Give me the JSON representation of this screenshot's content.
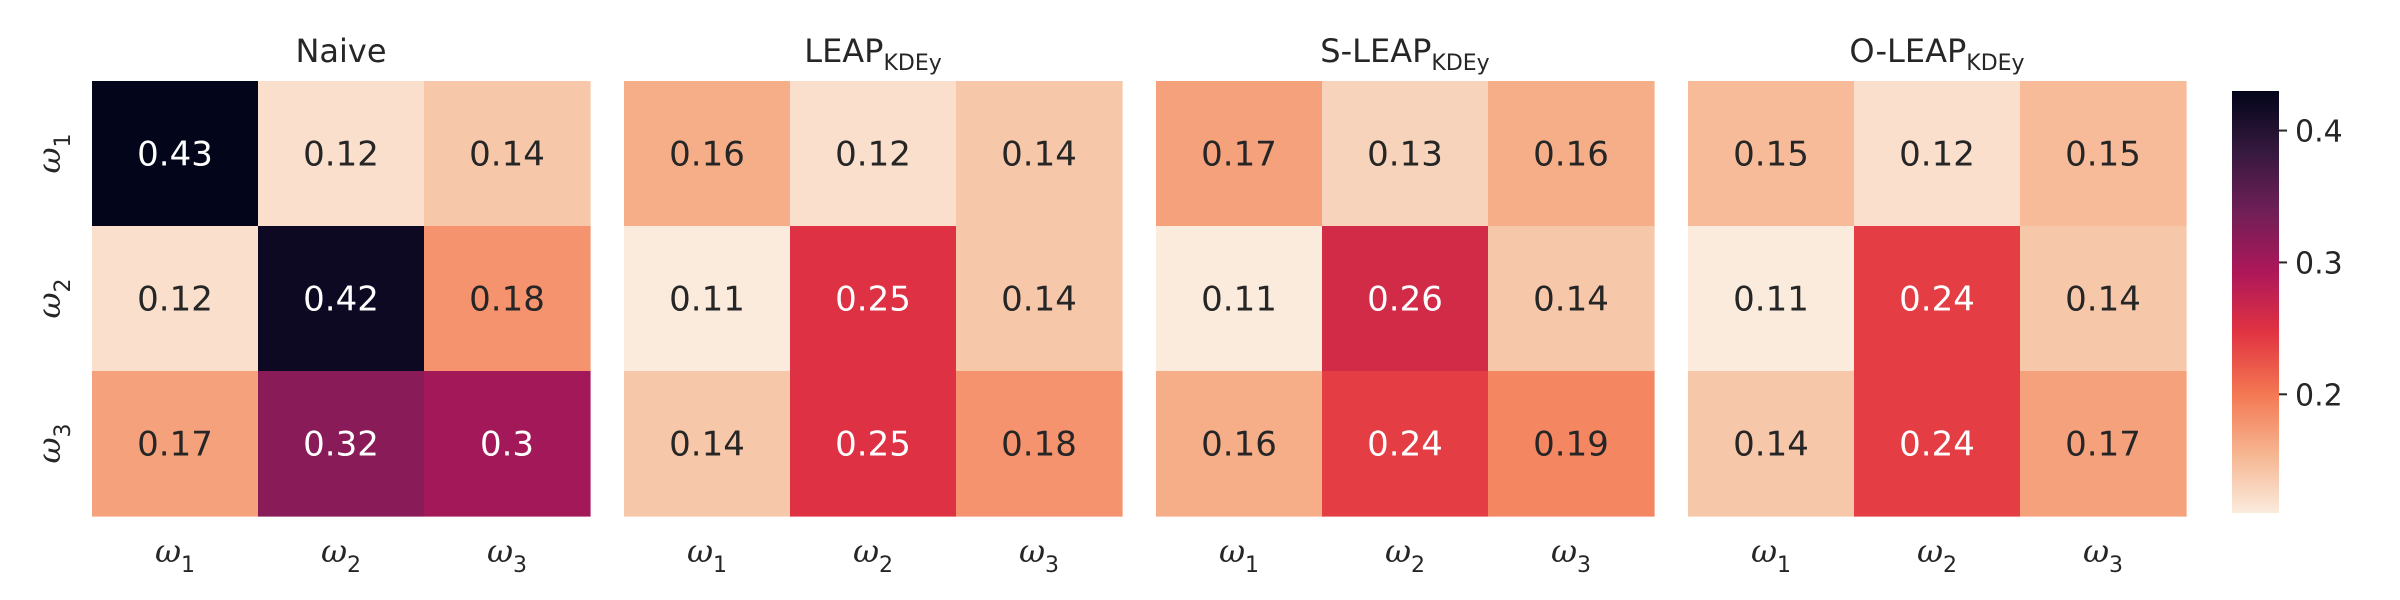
{
  "chart_data": [
    {
      "type": "heatmap",
      "title": "Naive",
      "title_sub": "",
      "x_tick_labels": [
        [
          "ω",
          "1"
        ],
        [
          "ω",
          "2"
        ],
        [
          "ω",
          "3"
        ]
      ],
      "y_tick_labels": [
        [
          "ω",
          "1"
        ],
        [
          "ω",
          "2"
        ],
        [
          "ω",
          "3"
        ]
      ],
      "values": [
        [
          0.43,
          0.12,
          0.14
        ],
        [
          0.12,
          0.42,
          0.18
        ],
        [
          0.17,
          0.32,
          0.3
        ]
      ],
      "labels": [
        [
          "0.43",
          "0.12",
          "0.14"
        ],
        [
          "0.12",
          "0.42",
          "0.18"
        ],
        [
          "0.17",
          "0.32",
          "0.3"
        ]
      ]
    },
    {
      "type": "heatmap",
      "title": "LEAP",
      "title_sub": "KDEy",
      "x_tick_labels": [
        [
          "ω",
          "1"
        ],
        [
          "ω",
          "2"
        ],
        [
          "ω",
          "3"
        ]
      ],
      "values": [
        [
          0.16,
          0.12,
          0.14
        ],
        [
          0.11,
          0.25,
          0.14
        ],
        [
          0.14,
          0.25,
          0.18
        ]
      ],
      "labels": [
        [
          "0.16",
          "0.12",
          "0.14"
        ],
        [
          "0.11",
          "0.25",
          "0.14"
        ],
        [
          "0.14",
          "0.25",
          "0.18"
        ]
      ]
    },
    {
      "type": "heatmap",
      "title": "S-LEAP",
      "title_sub": "KDEy",
      "x_tick_labels": [
        [
          "ω",
          "1"
        ],
        [
          "ω",
          "2"
        ],
        [
          "ω",
          "3"
        ]
      ],
      "values": [
        [
          0.17,
          0.13,
          0.16
        ],
        [
          0.11,
          0.26,
          0.14
        ],
        [
          0.16,
          0.24,
          0.19
        ]
      ],
      "labels": [
        [
          "0.17",
          "0.13",
          "0.16"
        ],
        [
          "0.11",
          "0.26",
          "0.14"
        ],
        [
          "0.16",
          "0.24",
          "0.19"
        ]
      ]
    },
    {
      "type": "heatmap",
      "title": "O-LEAP",
      "title_sub": "KDEy",
      "x_tick_labels": [
        [
          "ω",
          "1"
        ],
        [
          "ω",
          "2"
        ],
        [
          "ω",
          "3"
        ]
      ],
      "values": [
        [
          0.15,
          0.12,
          0.15
        ],
        [
          0.11,
          0.24,
          0.14
        ],
        [
          0.14,
          0.24,
          0.17
        ]
      ],
      "labels": [
        [
          "0.15",
          "0.12",
          "0.15"
        ],
        [
          "0.11",
          "0.24",
          "0.14"
        ],
        [
          "0.14",
          "0.24",
          "0.17"
        ]
      ]
    }
  ],
  "colorbar": {
    "min": 0.11,
    "max": 0.43,
    "ticks": [
      0.2,
      0.3,
      0.4
    ],
    "tick_labels": [
      "0.2",
      "0.3",
      "0.4"
    ],
    "colormap": "rocket_r",
    "stops": [
      "#faebdd",
      "#f6b48f",
      "#f37651",
      "#e13342",
      "#ad1759",
      "#701f57",
      "#35193e",
      "#03051a"
    ]
  }
}
